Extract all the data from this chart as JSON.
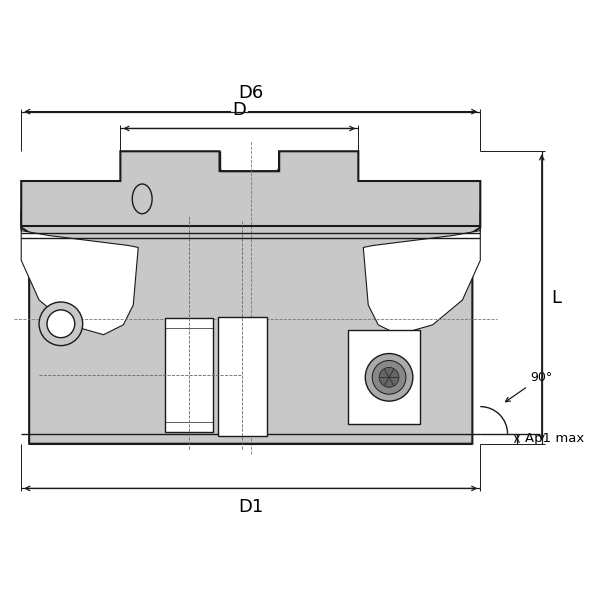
{
  "bg_color": "#ffffff",
  "line_color": "#1a1a1a",
  "gray_fill": "#c8c8c8",
  "dark_gray": "#909090",
  "mid_gray": "#b0b0b0",
  "labels": {
    "D6": "D6",
    "D": "D",
    "D1": "D1",
    "L": "L",
    "Ap1max": "Ap1 max",
    "angle": "90°"
  },
  "figsize": [
    6.0,
    6.0
  ],
  "dpi": 100
}
